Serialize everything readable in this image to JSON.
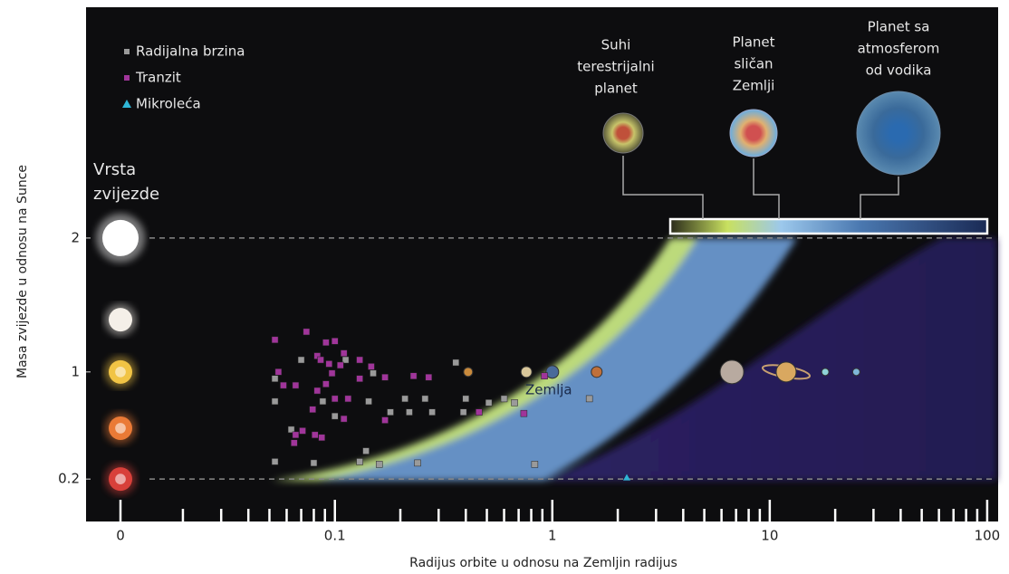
{
  "chart_data": {
    "type": "scatter",
    "xlabel": "Radijus orbite u odnosu na Zemljin radijus",
    "ylabel": "Masa zvijezde u odnosu na Sunce",
    "xscale": "log",
    "xlim": [
      0.017,
      105
    ],
    "ylim": [
      -0.11,
      3.71
    ],
    "xticks": [
      0.1,
      1,
      10,
      100
    ],
    "xminorticks": [
      0.02,
      0.03,
      0.04,
      0.05,
      0.06,
      0.07,
      0.08,
      0.09,
      0.2,
      0.3,
      0.4,
      0.5,
      0.6,
      0.7,
      0.8,
      0.9,
      2,
      3,
      4,
      5,
      6,
      7,
      8,
      9,
      20,
      30,
      40,
      50,
      60,
      70,
      80,
      90
    ],
    "yticks": [
      0.2,
      1,
      2
    ],
    "ylines": [
      0.2,
      2
    ],
    "legend": "upper left",
    "series": [
      {
        "name": "Radijalna brzina",
        "color": "#9a9a9a",
        "marker": "square",
        "x": [
          0.07,
          0.053,
          0.063,
          0.088,
          0.112,
          0.143,
          0.15,
          0.21,
          0.22,
          0.28,
          0.36,
          0.4,
          0.39,
          0.6,
          0.67,
          1.48,
          0.053,
          0.08,
          0.139,
          0.13,
          0.16,
          0.24,
          0.83,
          0.053,
          0.1,
          0.26,
          0.51,
          0.18
        ],
        "y": [
          1.09,
          0.78,
          0.57,
          0.78,
          1.09,
          0.78,
          0.99,
          0.8,
          0.7,
          0.7,
          1.07,
          0.8,
          0.7,
          0.8,
          0.77,
          0.8,
          0.33,
          0.32,
          0.41,
          0.33,
          0.31,
          0.32,
          0.31,
          0.95,
          0.67,
          0.8,
          0.77,
          0.7
        ]
      },
      {
        "name": "Tranzit",
        "color": "#a0359a",
        "marker": "square",
        "x": [
          0.053,
          0.074,
          0.091,
          0.1,
          0.083,
          0.086,
          0.11,
          0.055,
          0.058,
          0.066,
          0.094,
          0.097,
          0.106,
          0.13,
          0.147,
          0.17,
          0.23,
          0.27,
          0.1,
          0.115,
          0.079,
          0.081,
          0.066,
          0.065,
          0.087,
          0.071,
          0.17,
          0.11,
          0.46,
          0.74,
          0.92,
          0.091,
          0.13,
          0.083
        ],
        "y": [
          1.24,
          1.3,
          1.22,
          1.23,
          1.12,
          1.09,
          1.14,
          1.0,
          0.9,
          0.9,
          1.06,
          0.99,
          1.05,
          1.09,
          1.04,
          0.96,
          0.97,
          0.96,
          0.8,
          0.8,
          0.72,
          0.53,
          0.53,
          0.47,
          0.51,
          0.56,
          0.64,
          0.65,
          0.7,
          0.69,
          0.97,
          0.91,
          0.95,
          0.86
        ]
      },
      {
        "name": "Mikroleća",
        "color": "#2fb6d6",
        "marker": "triangle",
        "x": [
          2.2
        ],
        "y": [
          0.21
        ]
      }
    ],
    "solar_system": {
      "x": [
        0.41,
        0.76,
        1,
        1.6,
        6.7,
        11.9,
        18,
        25
      ],
      "y": [
        1,
        1,
        1,
        1,
        1,
        1,
        1,
        1
      ],
      "colors": [
        "#c98a3c",
        "#d9c79a",
        "#4a6b9a",
        "#c0703a",
        "#b8aaa0",
        "#d9a860",
        "#8fd3d8",
        "#7fb6d8"
      ],
      "labels": [
        null,
        null,
        "Zemlja",
        null,
        null,
        null,
        null,
        null
      ]
    },
    "stars": {
      "title": [
        "Vrsta",
        "zvijezde"
      ],
      "x_label": "0",
      "mass": [
        2,
        1.39,
        1,
        0.58,
        0.2
      ],
      "colors": [
        "#ffffff",
        "#f4efe8",
        "#f1c445",
        "#ea7a36",
        "#d8403a"
      ]
    },
    "planet_types": {
      "labels": [
        [
          "Suhi",
          "terestrijalni",
          "planet"
        ],
        [
          "Planet",
          "sličan",
          "Zemlji"
        ],
        [
          "Planet sa",
          "atmosferom",
          "od vodika"
        ]
      ]
    }
  }
}
